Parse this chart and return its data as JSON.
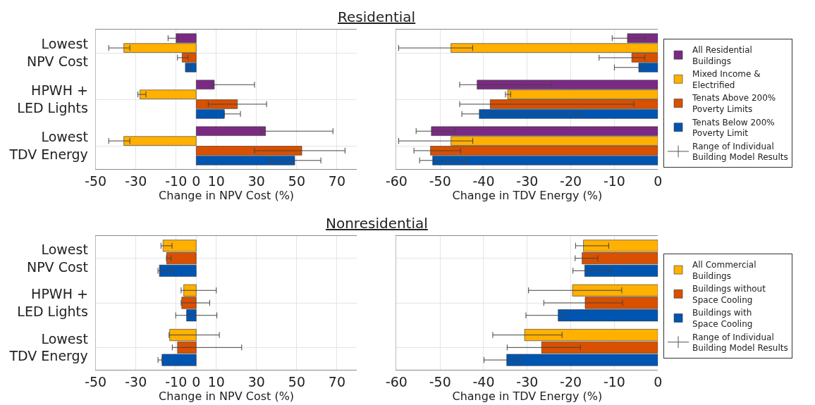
{
  "chart_data": [
    {
      "type": "bar",
      "orientation": "horizontal",
      "title": "Residential",
      "xlabel": "Change in NPV Cost (%)",
      "categories": [
        "Lowest NPV Cost",
        "HPWH + LED Lights",
        "Lowest TDV Energy"
      ],
      "xlim": [
        -50,
        80
      ],
      "xticks": [
        -50,
        -30,
        -10,
        0,
        10,
        30,
        50,
        70
      ],
      "grid": true,
      "legend": false,
      "series": [
        {
          "color": "#7b2a83",
          "values": [
            -10,
            9,
            34.5
          ],
          "errors": [
            [
              -14,
              -9
            ],
            [
              8,
              29
            ],
            [
              32,
              68
            ]
          ]
        },
        {
          "color": "#ffb000",
          "values": [
            -36,
            -28,
            -36
          ],
          "errors": [
            [
              -43.5,
              -33
            ],
            [
              -29,
              -25
            ],
            [
              -43.5,
              -33
            ]
          ]
        },
        {
          "color": "#d95000",
          "values": [
            -7,
            20.5,
            52.5
          ],
          "errors": [
            [
              -9.3,
              -4
            ],
            [
              6,
              35
            ],
            [
              29,
              74
            ]
          ]
        },
        {
          "color": "#0055b0",
          "values": [
            -5.4,
            14,
            49
          ],
          "errors": [
            [
              -4,
              -3
            ],
            [
              14,
              22
            ],
            [
              37,
              62
            ]
          ]
        }
      ]
    },
    {
      "type": "bar",
      "orientation": "horizontal",
      "xlabel": "Change in TDV Energy (%)",
      "categories": [
        null,
        null,
        null
      ],
      "xlim": [
        -60,
        0
      ],
      "xticks": [
        -60,
        -50,
        -40,
        -30,
        -20,
        -10,
        0
      ],
      "grid": true,
      "legend": "right",
      "tick_labels": "x",
      "annotations": [
        "Range of Individual Building Model Results"
      ],
      "series": [
        {
          "name": "All Residential Buildings",
          "color": "#7b2a83",
          "values": [
            -7,
            -41.5,
            -52
          ],
          "errors": [
            [
              -10.5,
              -3
            ],
            [
              -45.5,
              -24.5
            ],
            [
              -55.5,
              -46.5
            ]
          ]
        },
        {
          "name": "Mixed Income & Electrified",
          "color": "#ffb000",
          "values": [
            -47.5,
            -34.5,
            -47.5
          ],
          "errors": [
            [
              -59.5,
              -42.5
            ],
            [
              -35,
              -33.8
            ],
            [
              -59.5,
              -42.5
            ]
          ]
        },
        {
          "name": "Tenats Above 200% Poverty Limits",
          "color": "#d95000",
          "values": [
            -6,
            -38.5,
            -52.2
          ],
          "errors": [
            [
              -13.5,
              -3
            ],
            [
              -45.5,
              -5.5
            ],
            [
              -56,
              -45.3
            ]
          ]
        },
        {
          "name": "Tenats Below 200% Poverty Limit",
          "color": "#0055b0",
          "values": [
            -4.4,
            -41,
            -51.7
          ],
          "errors": [
            [
              -10,
              -3
            ],
            [
              -45,
              -17.5
            ],
            [
              -54.7,
              -44.3
            ]
          ]
        }
      ]
    },
    {
      "type": "bar",
      "orientation": "horizontal",
      "title": "Nonresidential",
      "xlabel": "Change in NPV Cost (%)",
      "categories": [
        "Lowest NPV Cost",
        "HPWH + LED Lights",
        "Lowest TDV Energy"
      ],
      "xlim": [
        -50,
        80
      ],
      "xticks": [
        -50,
        -30,
        -10,
        0,
        10,
        30,
        50,
        70
      ],
      "grid": true,
      "legend": false,
      "series": [
        {
          "color": "#ffb000",
          "values": [
            -16.5,
            -6.2,
            -13.2
          ],
          "errors": [
            [
              -17.5,
              -12
            ],
            [
              -7.5,
              10
            ],
            [
              -13.5,
              11.5
            ]
          ]
        },
        {
          "color": "#d95000",
          "values": [
            -14.7,
            -7.2,
            -9.3
          ],
          "errors": [
            [
              -14.8,
              -12.5
            ],
            [
              -7.5,
              6.7
            ],
            [
              -11.9,
              22.6
            ]
          ]
        },
        {
          "color": "#0055b0",
          "values": [
            -18.3,
            -4.8,
            -17
          ],
          "errors": [
            [
              -19,
              -11
            ],
            [
              -10.2,
              10.3
            ],
            [
              -19,
              -17
            ]
          ]
        }
      ]
    },
    {
      "type": "bar",
      "orientation": "horizontal",
      "xlabel": "Change in TDV Energy (%)",
      "categories": [
        null,
        null,
        null
      ],
      "xlim": [
        -60,
        0
      ],
      "xticks": [
        -60,
        -50,
        -40,
        -30,
        -20,
        -10,
        0
      ],
      "grid": true,
      "legend": "right",
      "tick_labels": "x",
      "annotations": [
        "Range of Individual Building Model Results"
      ],
      "series": [
        {
          "name": "All Commercial Buildings",
          "color": "#ffb000",
          "values": [
            -17.1,
            -19.6,
            -30.6
          ],
          "errors": [
            [
              -18.9,
              -11.3
            ],
            [
              -29.7,
              -8.3
            ],
            [
              -37.9,
              -22
            ]
          ]
        },
        {
          "name": "Buildings without Space Cooling",
          "color": "#d95000",
          "values": [
            -17.4,
            -16.7,
            -26.7
          ],
          "errors": [
            [
              -19,
              -13.8
            ],
            [
              -26.2,
              -8.1
            ],
            [
              -34.6,
              -17.8
            ]
          ]
        },
        {
          "name": "Buildings with Space Cooling",
          "color": "#0055b0",
          "values": [
            -16.8,
            -22.9,
            -34.7
          ],
          "errors": [
            [
              -19.5,
              -10.8
            ],
            [
              -30.3,
              -21.3
            ],
            [
              -39.9,
              -31.9
            ]
          ]
        }
      ]
    }
  ]
}
